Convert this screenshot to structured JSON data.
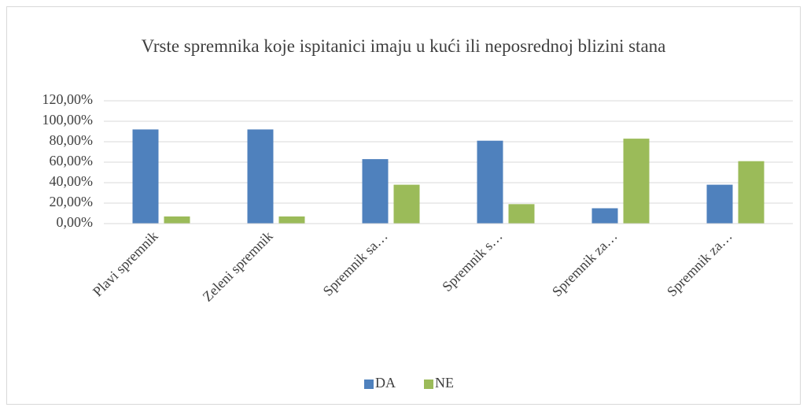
{
  "chart_data": {
    "type": "bar",
    "title": "Vrste spremnika koje ispitanici imaju u kući ili neposrednoj blizini stana",
    "categories": [
      "Plavi spremnik",
      "Zeleni spremnik",
      "Spremnik sa…",
      "Spremnik s…",
      "Spremnik za…",
      "Spremnik za…"
    ],
    "series": [
      {
        "name": "DA",
        "color": "#4f81bd",
        "values": [
          92,
          92,
          63,
          81,
          15,
          38
        ]
      },
      {
        "name": "NE",
        "color": "#9bbb59",
        "values": [
          7,
          7,
          38,
          19,
          83,
          61
        ]
      }
    ],
    "ylim": [
      0,
      120
    ],
    "yticks": [
      {
        "value": 0,
        "label": "0,00%"
      },
      {
        "value": 20,
        "label": "20,00%"
      },
      {
        "value": 40,
        "label": "40,00%"
      },
      {
        "value": 60,
        "label": "60,00%"
      },
      {
        "value": 80,
        "label": "80,00%"
      },
      {
        "value": 100,
        "label": "100,00%"
      },
      {
        "value": 120,
        "label": "120,00%"
      }
    ],
    "grid": true,
    "legend": "bottom"
  }
}
